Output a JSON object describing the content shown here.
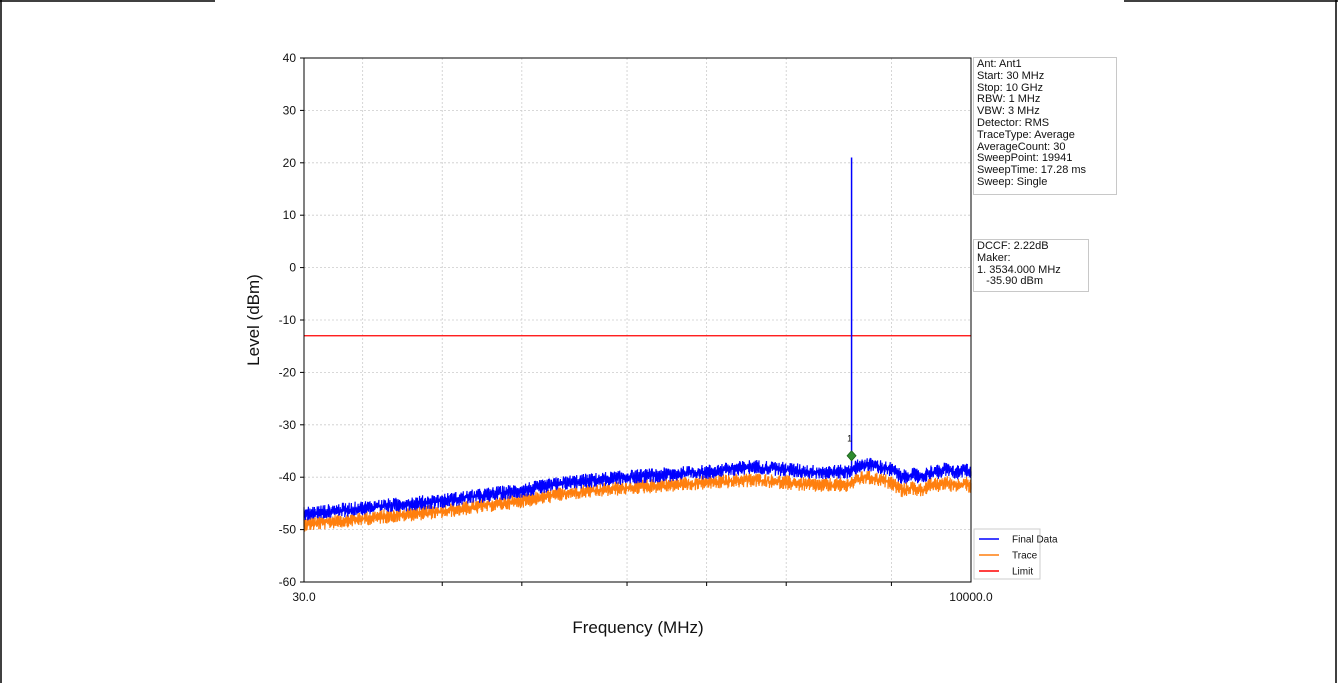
{
  "colors": {
    "final_data": "#0000ff",
    "trace": "#ff7f0e",
    "limit": "#ff0000",
    "marker": "#2e8b2e",
    "grid": "#cccccc"
  },
  "info_box": {
    "lines": [
      "Ant: Ant1",
      "Start: 30 MHz",
      "Stop: 10 GHz",
      "RBW: 1 MHz",
      "VBW: 3 MHz",
      "Detector: RMS",
      "TraceType: Average",
      "AverageCount: 30",
      "SweepPoint: 19941",
      "SweepTime: 17.28 ms",
      "Sweep: Single"
    ]
  },
  "marker_box": {
    "lines": [
      "DCCF: 2.22dB",
      "Maker:",
      "1. 3534.000 MHz",
      "   -35.90 dBm"
    ]
  },
  "chart_data": {
    "type": "line",
    "xlabel": "Frequency (MHz)",
    "ylabel": "Level (dBm)",
    "x_scale": "log",
    "xlim": [
      30,
      10000
    ],
    "ylim": [
      -60,
      40
    ],
    "x_ticks": [
      "30.0",
      "10000.0"
    ],
    "y_ticks": [
      -60,
      -50,
      -40,
      -30,
      -20,
      -10,
      0,
      10,
      20,
      30,
      40
    ],
    "grid": true,
    "legend_position": "bottom-right",
    "limit": -13,
    "marker": {
      "label": "1",
      "x": 3534,
      "y": -35.9
    },
    "series": [
      {
        "name": "Final Data",
        "x": [
          30,
          60,
          100,
          200,
          300,
          500,
          1000,
          1500,
          2000,
          2500,
          3000,
          3400,
          3534,
          3700,
          4000,
          4500,
          5000,
          5500,
          6000,
          6500,
          7000,
          7500,
          8000,
          8500,
          9000,
          9500,
          10000
        ],
        "y": [
          -47,
          -45.5,
          -44.5,
          -42.5,
          -41,
          -40,
          -39,
          -38,
          -38.5,
          -39,
          -39,
          -39,
          21,
          -38,
          -37.5,
          -38,
          -38.5,
          -40,
          -39.5,
          -40,
          -39,
          -39,
          -38.5,
          -39,
          -39,
          -38.5,
          -39.5
        ],
        "spike": {
          "x": 3534,
          "y": 21
        }
      },
      {
        "name": "Trace",
        "x": [
          30,
          60,
          100,
          200,
          300,
          500,
          1000,
          1500,
          2000,
          2500,
          3000,
          3400,
          3534,
          3700,
          4000,
          4500,
          5000,
          5500,
          6000,
          6500,
          7000,
          7500,
          8000,
          8500,
          9000,
          9500,
          10000
        ],
        "y": [
          -49,
          -47.5,
          -46.5,
          -44.5,
          -43,
          -42,
          -41,
          -40.5,
          -41,
          -41.5,
          -41.5,
          -41.5,
          -41,
          -40.5,
          -40,
          -40.5,
          -41,
          -42.5,
          -42,
          -42.5,
          -41.5,
          -41.5,
          -41,
          -41.5,
          -41.5,
          -41,
          -42
        ]
      },
      {
        "name": "Limit",
        "x": [
          30,
          10000
        ],
        "y": [
          -13,
          -13
        ]
      }
    ]
  }
}
